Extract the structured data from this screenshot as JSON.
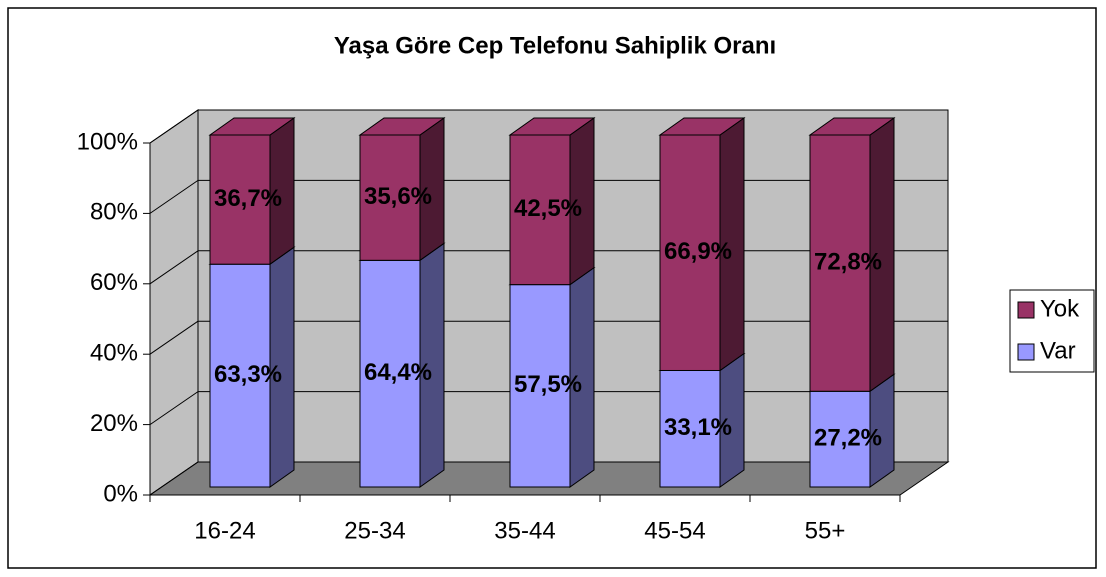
{
  "chart_data": {
    "type": "bar3d_stacked",
    "title": "Yaşa Göre Cep Telefonu Sahiplik Oranı",
    "categories": [
      "16-24",
      "25-34",
      "35-44",
      "45-54",
      "55+"
    ],
    "series": [
      {
        "name": "Var",
        "color": "#9999ff",
        "side_color": "#4d4d80",
        "values": [
          63.3,
          64.4,
          57.5,
          33.1,
          27.2
        ],
        "value_labels": [
          "63,3%",
          "64,4%",
          "57,5%",
          "33,1%",
          "27,2%"
        ]
      },
      {
        "name": "Yok",
        "color": "#993366",
        "side_color": "#4d1a33",
        "values": [
          36.7,
          35.6,
          42.5,
          66.9,
          72.8
        ],
        "value_labels": [
          "36,7%",
          "35,6%",
          "42,5%",
          "66,9%",
          "72,8%"
        ]
      }
    ],
    "ylim": [
      0,
      100
    ],
    "yticks": [
      {
        "value": 0,
        "label": "0%"
      },
      {
        "value": 20,
        "label": "20%"
      },
      {
        "value": 40,
        "label": "40%"
      },
      {
        "value": 60,
        "label": "60%"
      },
      {
        "value": 80,
        "label": "80%"
      },
      {
        "value": 100,
        "label": "100%"
      }
    ],
    "grid": true,
    "legend": "right"
  }
}
